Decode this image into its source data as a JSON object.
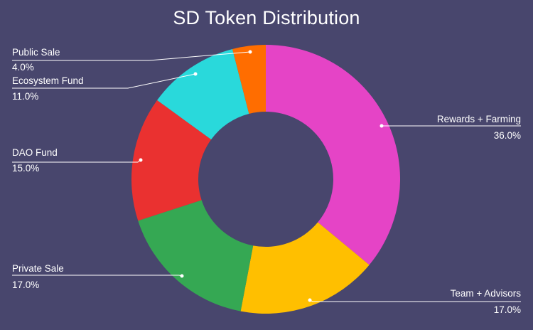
{
  "chart_data": {
    "type": "pie",
    "title": "SD Token Distribution",
    "donut": true,
    "background": "#48466d",
    "slices": [
      {
        "label": "Rewards + Farming",
        "value": 36.0,
        "display": "36.0%",
        "color": "#e544c6"
      },
      {
        "label": "Team + Advisors",
        "value": 17.0,
        "display": "17.0%",
        "color": "#ffbf00"
      },
      {
        "label": "Private Sale",
        "value": 17.0,
        "display": "17.0%",
        "color": "#35a853"
      },
      {
        "label": "DAO Fund",
        "value": 15.0,
        "display": "15.0%",
        "color": "#ea3130"
      },
      {
        "label": "Ecosystem Fund",
        "value": 11.0,
        "display": "11.0%",
        "color": "#29d9db"
      },
      {
        "label": "Public Sale",
        "value": 4.0,
        "display": "4.0%",
        "color": "#ff6d00"
      }
    ]
  }
}
